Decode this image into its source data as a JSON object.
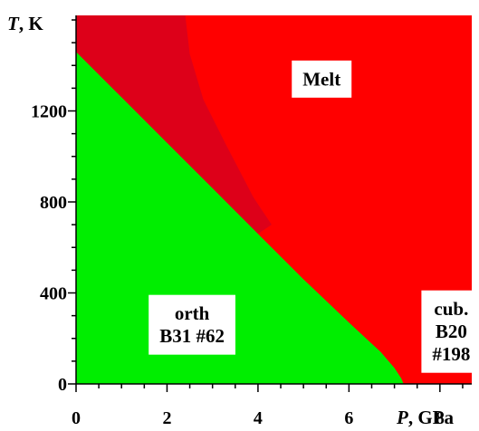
{
  "chart_data": {
    "type": "phase-diagram",
    "title": "",
    "xlabel_var": "P",
    "xlabel_unit": ", GPa",
    "ylabel_var": "T",
    "ylabel_unit": ", K",
    "xlim": [
      0,
      8.7
    ],
    "ylim": [
      0,
      1620
    ],
    "x_ticks": [
      0,
      2,
      4,
      6,
      8
    ],
    "y_ticks": [
      0,
      400,
      800,
      1200
    ],
    "x_minor_step": 0.5,
    "y_minor_step": 100,
    "colors": {
      "melt": "#ff0000",
      "melt_dark": "#dd0019",
      "orth": "#00ee00",
      "axes": "#000000"
    },
    "orth_boundary": [
      [
        0.0,
        1460
      ],
      [
        1.0,
        1260
      ],
      [
        2.0,
        1060
      ],
      [
        3.0,
        860
      ],
      [
        4.0,
        660
      ],
      [
        5.0,
        460
      ],
      [
        6.0,
        270
      ],
      [
        6.7,
        140
      ],
      [
        7.0,
        70
      ],
      [
        7.15,
        25
      ],
      [
        7.2,
        0
      ]
    ],
    "dark_region_boundary": [
      [
        2.4,
        1620
      ],
      [
        2.5,
        1450
      ],
      [
        2.8,
        1250
      ],
      [
        3.3,
        1050
      ],
      [
        3.9,
        820
      ],
      [
        4.3,
        700
      ]
    ],
    "regions": [
      {
        "name": "melt",
        "lines": [
          "Melt"
        ],
        "at": [
          5.4,
          1340
        ]
      },
      {
        "name": "orth",
        "lines": [
          "orth",
          "B31 #62"
        ],
        "at": [
          2.55,
          260
        ]
      },
      {
        "name": "cub",
        "lines": [
          "cub.",
          "B20",
          "#198"
        ],
        "at": [
          8.25,
          230
        ]
      }
    ]
  }
}
